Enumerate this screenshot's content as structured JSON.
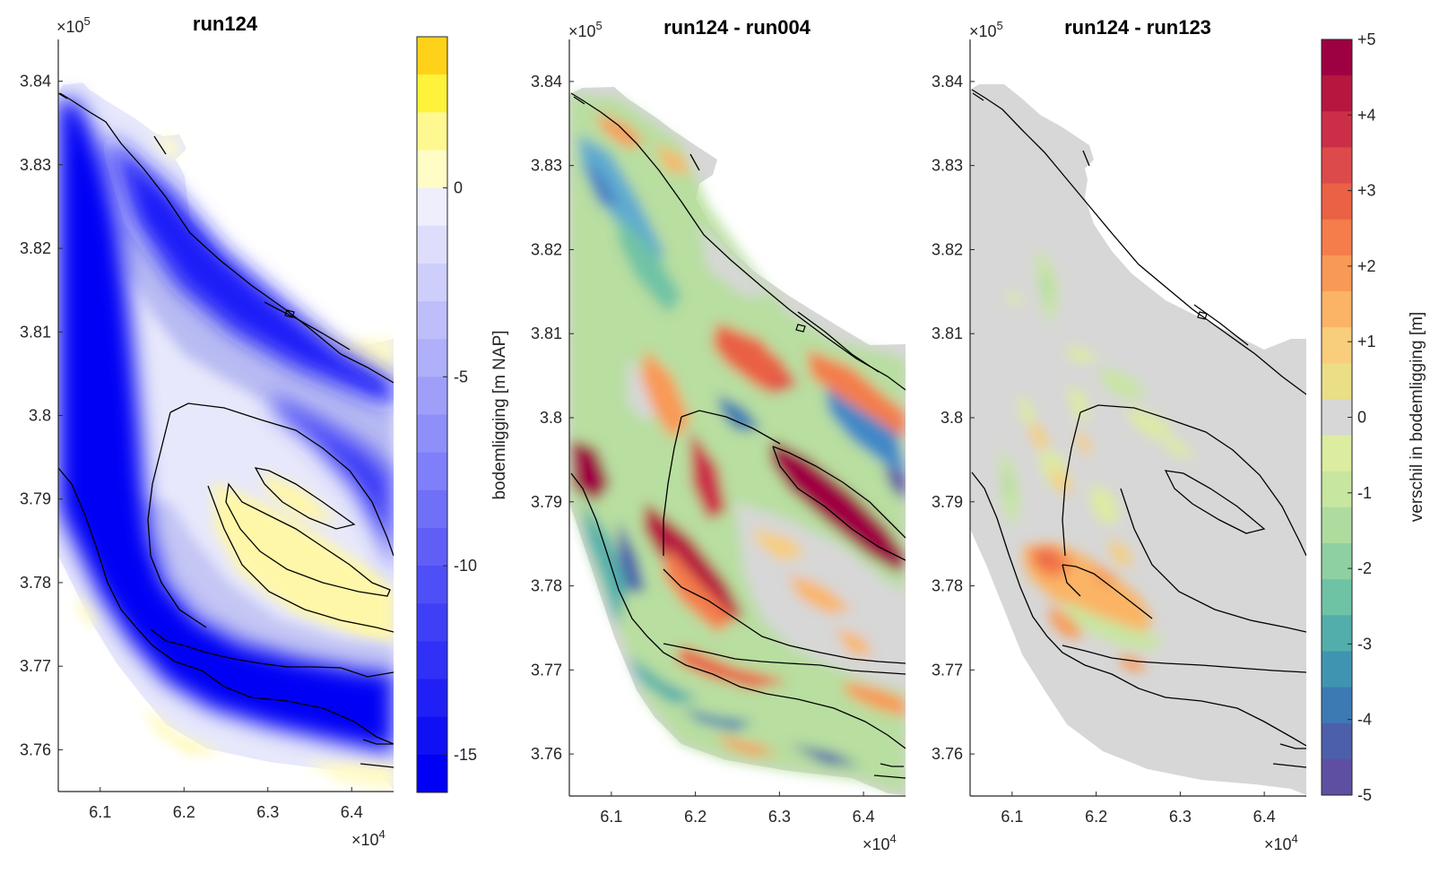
{
  "chart_data": [
    {
      "type": "heatmap",
      "title": "run124",
      "xlabel": "",
      "ylabel": "",
      "x_exponent": "×10^4",
      "y_exponent": "×10^5",
      "x_ticks": [
        6.1,
        6.2,
        6.3,
        6.4
      ],
      "x_tick_labels": [
        "6.1",
        "6.2",
        "6.3",
        "6.4"
      ],
      "y_ticks": [
        3.76,
        3.77,
        3.78,
        3.79,
        3.8,
        3.81,
        3.82,
        3.83,
        3.84
      ],
      "y_tick_labels": [
        "3.76",
        "3.77",
        "3.78",
        "3.79",
        "3.8",
        "3.81",
        "3.82",
        "3.83",
        "3.84"
      ],
      "xlim": [
        6.05,
        6.45
      ],
      "ylim": [
        3.755,
        3.845
      ],
      "colorbar": {
        "label": "bodemligging [m NAP]",
        "ticks": [
          0,
          -5,
          -10,
          -15
        ],
        "tick_labels": [
          "0",
          "-5",
          "-10",
          "-15"
        ],
        "range": [
          -16,
          4
        ],
        "colormap": "blue-white-yellow"
      },
      "colors": {
        "deep": "#0000f5",
        "zero": "#f4f4fb",
        "shallow": "#fff59a",
        "high": "#ffd21a"
      }
    },
    {
      "type": "heatmap",
      "title": "run124 - run004",
      "xlabel": "",
      "ylabel": "",
      "x_exponent": "×10^4",
      "y_exponent": "×10^5",
      "x_ticks": [
        6.1,
        6.2,
        6.3,
        6.4
      ],
      "x_tick_labels": [
        "6.1",
        "6.2",
        "6.3",
        "6.4"
      ],
      "y_ticks": [
        3.76,
        3.77,
        3.78,
        3.79,
        3.8,
        3.81,
        3.82,
        3.83,
        3.84
      ],
      "y_tick_labels": [
        "3.76",
        "3.77",
        "3.78",
        "3.79",
        "3.8",
        "3.81",
        "3.82",
        "3.83",
        "3.84"
      ],
      "xlim": [
        6.05,
        6.45
      ],
      "ylim": [
        3.755,
        3.845
      ],
      "colormap": "spectral (diverging)"
    },
    {
      "type": "heatmap",
      "title": "run124 - run123",
      "xlabel": "",
      "ylabel": "",
      "x_exponent": "×10^4",
      "y_exponent": "×10^5",
      "x_ticks": [
        6.1,
        6.2,
        6.3,
        6.4
      ],
      "x_tick_labels": [
        "6.1",
        "6.2",
        "6.3",
        "6.4"
      ],
      "y_ticks": [
        3.76,
        3.77,
        3.78,
        3.79,
        3.8,
        3.81,
        3.82,
        3.83,
        3.84
      ],
      "y_tick_labels": [
        "3.76",
        "3.77",
        "3.78",
        "3.79",
        "3.8",
        "3.81",
        "3.82",
        "3.83",
        "3.84"
      ],
      "xlim": [
        6.05,
        6.45
      ],
      "ylim": [
        3.755,
        3.845
      ],
      "colorbar": {
        "label": "verschil in bodemligging [m]",
        "ticks": [
          5,
          4,
          3,
          2,
          1,
          0,
          -1,
          -2,
          -3,
          -4,
          -5
        ],
        "tick_labels": [
          "+5",
          "+4",
          "+3",
          "+2",
          "+1",
          "0",
          "-1",
          "-2",
          "-3",
          "-4",
          "-5"
        ],
        "range": [
          -5,
          5
        ],
        "colormap": "spectral (diverging)",
        "colors": [
          "#9e0142",
          "#b5173f",
          "#cb2f48",
          "#dd4a4b",
          "#ea6145",
          "#f47d4b",
          "#f99956",
          "#fbb465",
          "#f8cd7c",
          "#eade86",
          "#d7d7d7",
          "#dceca0",
          "#c7e6a0",
          "#aedc9f",
          "#8fd0a3",
          "#6fc3a5",
          "#52aeab",
          "#3f95b1",
          "#3c7ab4",
          "#4c5fab",
          "#5e4fa2"
        ]
      }
    }
  ]
}
